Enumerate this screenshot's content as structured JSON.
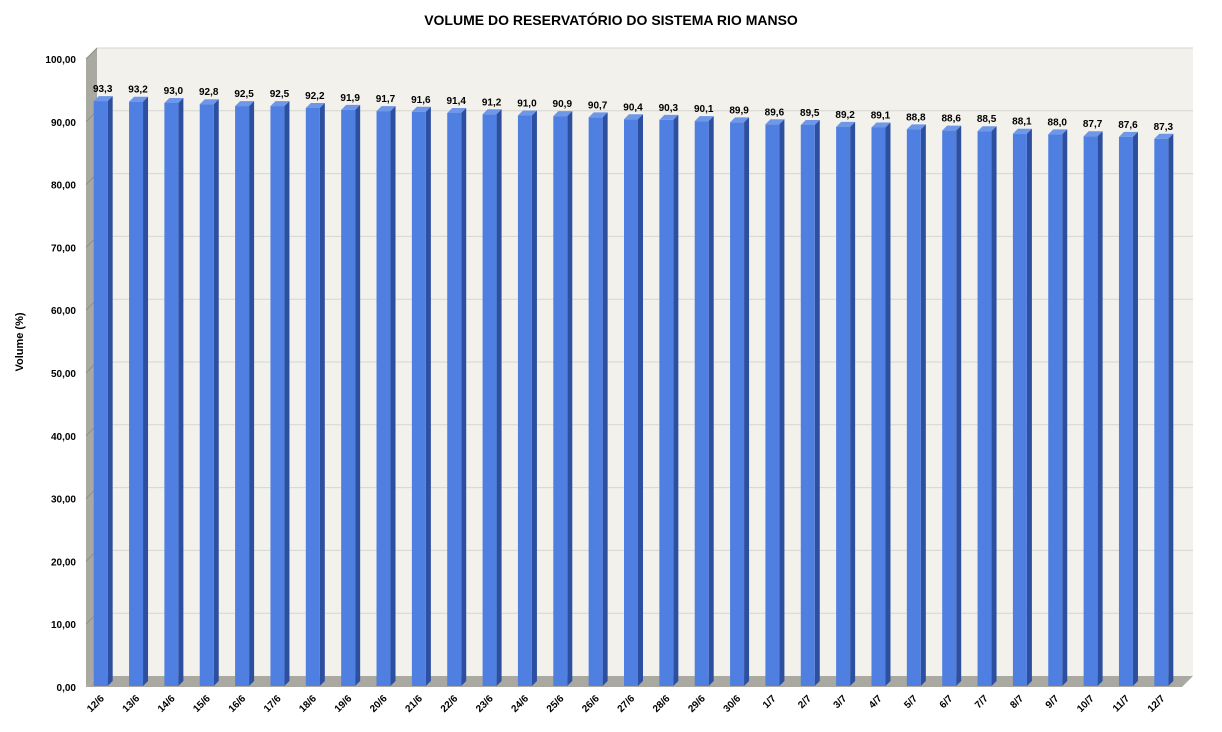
{
  "chart_data": {
    "type": "bar",
    "title": "VOLUME DO RESERVATÓRIO DO SISTEMA RIO MANSO",
    "xlabel": "",
    "ylabel": "Volume (%)",
    "ylim": [
      0,
      100
    ],
    "y_ticks": [
      "0,00",
      "10,00",
      "20,00",
      "30,00",
      "40,00",
      "50,00",
      "60,00",
      "70,00",
      "80,00",
      "90,00",
      "100,00"
    ],
    "grid": true,
    "legend": "none",
    "bar_color": "#4f7fe0",
    "categories": [
      "12/6",
      "13/6",
      "14/6",
      "15/6",
      "16/6",
      "17/6",
      "18/6",
      "19/6",
      "20/6",
      "21/6",
      "22/6",
      "23/6",
      "24/6",
      "25/6",
      "26/6",
      "27/6",
      "28/6",
      "29/6",
      "30/6",
      "1/7",
      "2/7",
      "3/7",
      "4/7",
      "5/7",
      "6/7",
      "7/7",
      "8/7",
      "9/7",
      "10/7",
      "11/7",
      "12/7"
    ],
    "values": [
      93.3,
      93.2,
      93.0,
      92.8,
      92.5,
      92.5,
      92.2,
      91.9,
      91.7,
      91.6,
      91.4,
      91.2,
      91.0,
      90.9,
      90.7,
      90.4,
      90.3,
      90.1,
      89.9,
      89.6,
      89.5,
      89.2,
      89.1,
      88.8,
      88.6,
      88.5,
      88.1,
      88.0,
      87.7,
      87.6,
      87.3
    ],
    "data_labels": [
      "93,3",
      "93,2",
      "93,0",
      "92,8",
      "92,5",
      "92,5",
      "92,2",
      "91,9",
      "91,7",
      "91,6",
      "91,4",
      "91,2",
      "91,0",
      "90,9",
      "90,7",
      "90,4",
      "90,3",
      "90,1",
      "89,9",
      "89,6",
      "89,5",
      "89,2",
      "89,1",
      "88,8",
      "88,6",
      "88,5",
      "88,1",
      "88,0",
      "87,7",
      "87,6",
      "87,3"
    ]
  }
}
